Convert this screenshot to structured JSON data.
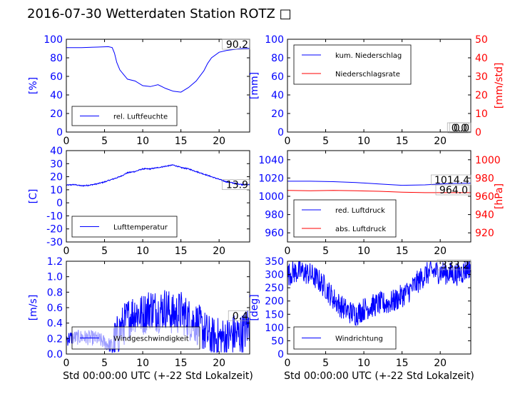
{
  "page": {
    "title": "2016-07-30 Wetterdaten Station ROTZ",
    "title_glyph": "□"
  },
  "colors": {
    "blue": "#0000ff",
    "red": "#ff0000",
    "black": "#000000"
  },
  "chart_data": [
    {
      "id": "humidity",
      "type": "line",
      "xlabel": "",
      "xlim": [
        0,
        24
      ],
      "xticks": [
        0,
        5,
        10,
        15,
        20
      ],
      "ylabel": "[%]",
      "ylim": [
        0,
        100
      ],
      "yticks": [
        0,
        20,
        40,
        60,
        80,
        100
      ],
      "last_value_label": "90.2",
      "legend": {
        "placement": "lower-left",
        "entries": [
          {
            "name": "rel. Luftfeuchte",
            "color": "#0000ff"
          }
        ]
      },
      "series": [
        {
          "name": "rel. Luftfeuchte",
          "color": "#0000ff",
          "noise": 0,
          "x": [
            0,
            2,
            4,
            5.5,
            6,
            6.3,
            6.6,
            7,
            7.5,
            8,
            9,
            10,
            11,
            12,
            13,
            14,
            15,
            16,
            17,
            18,
            18.5,
            19,
            20,
            21,
            22,
            23,
            24
          ],
          "y": [
            91,
            91,
            91.5,
            92,
            91,
            85,
            75,
            67,
            62,
            57,
            55,
            50,
            49,
            51,
            47,
            44,
            43,
            48,
            55,
            66,
            74,
            80,
            86,
            88,
            89,
            90,
            90.2
          ]
        }
      ]
    },
    {
      "id": "precip",
      "type": "line",
      "xlabel": "",
      "xlim": [
        0,
        24
      ],
      "xticks": [
        0,
        5,
        10,
        15,
        20
      ],
      "ylabel": "[mm]",
      "ylim": [
        0,
        100
      ],
      "yticks": [
        0,
        20,
        40,
        60,
        80,
        100
      ],
      "y2label": "[mm/std]",
      "y2lim": [
        0,
        50
      ],
      "y2ticks": [
        0,
        10,
        20,
        30,
        40,
        50
      ],
      "last_value_label": "0.0",
      "last_value_label_2": "0.0",
      "legend": {
        "placement": "upper-left",
        "entries": [
          {
            "name": "kum. Niederschlag",
            "color": "#0000ff"
          },
          {
            "name": "Niederschlagsrate",
            "color": "#ff0000"
          }
        ]
      },
      "series": [
        {
          "name": "kum. Niederschlag",
          "color": "#0000ff",
          "axis": "left",
          "noise": 0,
          "x": [
            0,
            24
          ],
          "y": [
            0,
            0
          ]
        },
        {
          "name": "Niederschlagsrate",
          "color": "#ff0000",
          "axis": "right",
          "noise": 0,
          "x": [
            0,
            24
          ],
          "y": [
            0,
            0
          ]
        }
      ]
    },
    {
      "id": "temperature",
      "type": "line",
      "xlabel": "",
      "xlim": [
        0,
        24
      ],
      "xticks": [
        0,
        5,
        10,
        15,
        20
      ],
      "ylabel": "[C]",
      "ylim": [
        -30,
        40
      ],
      "yticks": [
        -30,
        -20,
        -10,
        0,
        10,
        20,
        30,
        40
      ],
      "last_value_label": "13.9",
      "legend": {
        "placement": "lower-left",
        "entries": [
          {
            "name": "Lufttemperatur",
            "color": "#0000ff"
          }
        ]
      },
      "series": [
        {
          "name": "Lufttemperatur",
          "color": "#0000ff",
          "noise": 0.4,
          "x": [
            0,
            1,
            2,
            3,
            4,
            5,
            6,
            7,
            8,
            9,
            10,
            11,
            12,
            13,
            14,
            14.5,
            15,
            16,
            17,
            18,
            19,
            20,
            21,
            22,
            23,
            24
          ],
          "y": [
            13.5,
            14,
            13,
            13.5,
            14.5,
            16,
            18,
            20,
            23,
            24,
            26,
            26,
            27,
            28,
            29,
            28,
            27,
            26,
            24,
            22,
            20,
            18,
            16,
            15,
            14,
            13.9
          ]
        }
      ]
    },
    {
      "id": "pressure",
      "type": "line",
      "xlabel": "",
      "xlim": [
        0,
        24
      ],
      "xticks": [
        0,
        5,
        10,
        15,
        20
      ],
      "ylabel": "",
      "ylim": [
        950,
        1050
      ],
      "yticks": [
        960,
        980,
        1000,
        1020,
        1040
      ],
      "y2label": "[hPa]",
      "y2lim": [
        910,
        1010
      ],
      "y2ticks": [
        920,
        940,
        960,
        980,
        1000
      ],
      "last_value_label": "1014.4",
      "last_value_label_2": "964.0",
      "legend": {
        "placement": "lower-left",
        "entries": [
          {
            "name": "red. Luftdruck",
            "color": "#0000ff"
          },
          {
            "name": "abs. Luftdruck",
            "color": "#ff0000"
          }
        ]
      },
      "series": [
        {
          "name": "red. Luftdruck",
          "color": "#0000ff",
          "axis": "left",
          "noise": 0,
          "x": [
            0,
            3,
            6,
            9,
            12,
            15,
            18,
            21,
            24
          ],
          "y": [
            1016.5,
            1016.5,
            1016,
            1015,
            1013.5,
            1012,
            1012.5,
            1014,
            1014.4
          ]
        },
        {
          "name": "abs. Luftdruck",
          "color": "#ff0000",
          "axis": "right",
          "noise": 0,
          "x": [
            0,
            3,
            6,
            9,
            12,
            15,
            18,
            21,
            24
          ],
          "y": [
            966.5,
            966,
            966.5,
            966,
            965.5,
            964.5,
            964,
            964,
            964.0
          ]
        }
      ]
    },
    {
      "id": "windspeed",
      "type": "line",
      "xlabel": "Std 00:00:00 UTC (+-22 Std Lokalzeit)",
      "xlim": [
        0,
        24
      ],
      "xticks": [
        0,
        5,
        10,
        15,
        20
      ],
      "ylabel": "[m/s]",
      "ylim": [
        0,
        1.2
      ],
      "yticks": [
        0,
        0.2,
        0.4,
        0.6,
        0.8,
        1.0,
        1.2
      ],
      "last_value_label": "0.4",
      "legend": {
        "placement": "lower-left",
        "entries": [
          {
            "name": "Windgeschwindigkeit",
            "color": "#0000ff"
          }
        ]
      },
      "series": [
        {
          "name": "Windgeschwindigkeit",
          "color": "#0000ff",
          "noise": 0.28,
          "x": [
            0,
            2,
            4,
            6,
            7,
            8,
            9,
            10,
            11,
            12,
            13,
            14,
            15,
            16,
            17,
            18,
            19,
            20,
            21,
            22,
            23,
            24
          ],
          "y": [
            0.2,
            0.22,
            0.2,
            0.1,
            0.3,
            0.45,
            0.55,
            0.5,
            0.6,
            0.55,
            0.6,
            0.5,
            0.55,
            0.45,
            0.4,
            0.3,
            0.2,
            0.2,
            0.2,
            0.25,
            0.25,
            0.4
          ]
        }
      ]
    },
    {
      "id": "winddir",
      "type": "line",
      "xlabel": "Std 00:00:00 UTC (+-22 Std Lokalzeit)",
      "xlim": [
        0,
        24
      ],
      "xticks": [
        0,
        5,
        10,
        15,
        20
      ],
      "ylabel": "[deg]",
      "ylim": [
        0,
        350
      ],
      "yticks": [
        0,
        50,
        100,
        150,
        200,
        250,
        300,
        350
      ],
      "last_value_label": "333.2",
      "legend": {
        "placement": "lower-left",
        "entries": [
          {
            "name": "Windrichtung",
            "color": "#0000ff"
          }
        ]
      },
      "series": [
        {
          "name": "Windrichtung",
          "color": "#0000ff",
          "noise": 45,
          "x": [
            0,
            1,
            2,
            3,
            4,
            5,
            6,
            7,
            8,
            9,
            10,
            11,
            12,
            13,
            14,
            15,
            16,
            17,
            18,
            19,
            20,
            21,
            22,
            23,
            24
          ],
          "y": [
            300,
            310,
            310,
            300,
            280,
            250,
            210,
            180,
            160,
            150,
            170,
            180,
            190,
            190,
            200,
            220,
            240,
            270,
            300,
            310,
            310,
            305,
            300,
            310,
            333.2
          ]
        }
      ]
    }
  ]
}
